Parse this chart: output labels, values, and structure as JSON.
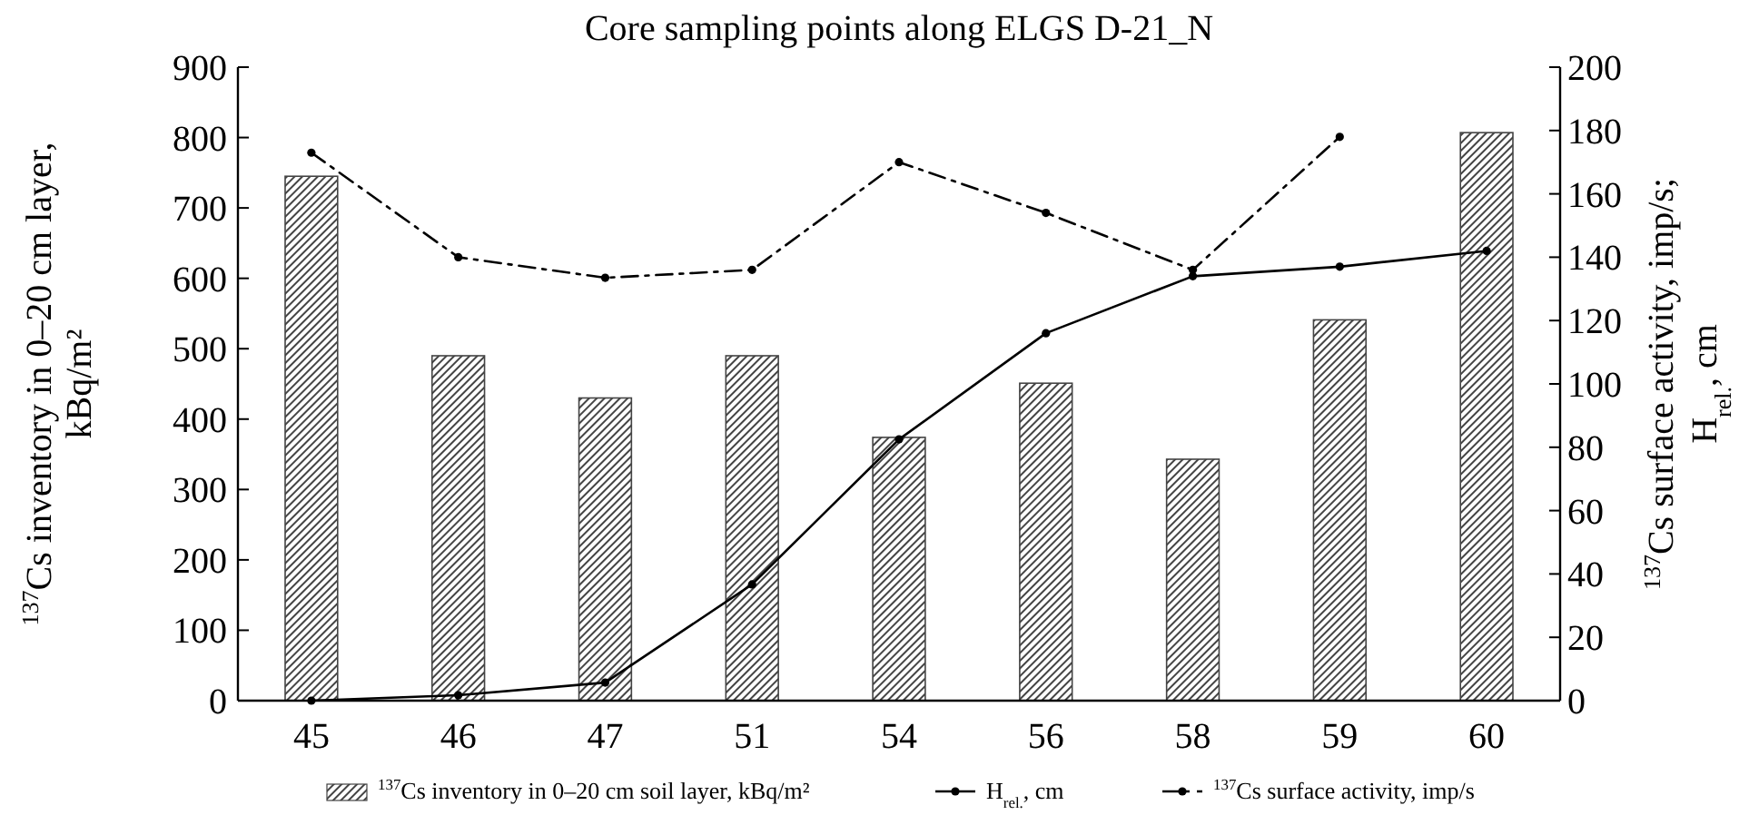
{
  "chart_data": {
    "type": "bar",
    "title": "Core sampling points along ELGS D-21_N",
    "categories": [
      "45",
      "46",
      "47",
      "51",
      "54",
      "56",
      "58",
      "59",
      "60"
    ],
    "ylabel": "$^{137}$Cs inventory in 0–20 cm layer, kBq/m²",
    "y2label": "$^{137}$Cs surface activity, imp/s; H$_{rel.}$, cm",
    "series": [
      {
        "name": "$^{137}$Cs inventory in 0–20 cm soil layer, kBq/m²",
        "color": "#444444",
        "values": [
          745,
          490,
          430,
          490,
          374,
          451,
          343,
          541,
          807
        ]
      },
      {
        "name": "H$_{rel.}$, cm",
        "type": "line",
        "axis": "y2",
        "color": "#000000",
        "line_style": "solid",
        "values": [
          0,
          1.7,
          5.7,
          36.7,
          82.5,
          116,
          134,
          137,
          142
        ]
      },
      {
        "name": "$^{137}$Cs surface activity, imp/s",
        "type": "line",
        "axis": "y2",
        "color": "#000000",
        "line_style": "dashed",
        "values": [
          173,
          140,
          133.5,
          136,
          170,
          154,
          136,
          178,
          null
        ]
      }
    ],
    "ylim": [
      0,
      900
    ],
    "yticks": [
      0,
      100,
      200,
      300,
      400,
      500,
      600,
      700,
      800,
      900
    ],
    "y2lim": [
      0,
      200
    ],
    "y2ticks": [
      0,
      20,
      40,
      60,
      80,
      100,
      120,
      140,
      160,
      180,
      200
    ],
    "marker": "circle",
    "grid": false,
    "legend": "bottom"
  }
}
